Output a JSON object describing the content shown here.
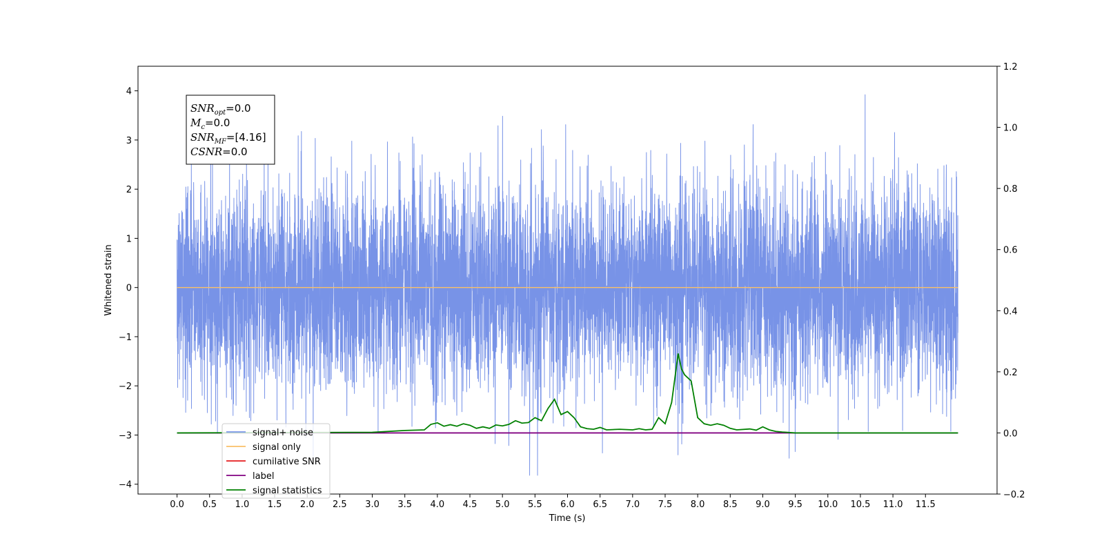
{
  "chart_data": {
    "type": "line",
    "title": "",
    "xlabel": "Time (s)",
    "ylabel": "Whitened strain",
    "xlim": [
      -0.6,
      12.6
    ],
    "ylim": [
      -4.2,
      4.5
    ],
    "y2lim": [
      -0.2,
      1.2
    ],
    "x_ticks": [
      "0.0",
      "0.5",
      "1.0",
      "1.5",
      "2.0",
      "2.5",
      "3.0",
      "3.5",
      "4.0",
      "4.5",
      "5.0",
      "5.5",
      "6.0",
      "6.5",
      "7.0",
      "7.5",
      "8.0",
      "8.5",
      "9.0",
      "9.5",
      "10.0",
      "10.5",
      "11.0",
      "11.5"
    ],
    "y_ticks": [
      "4",
      "3",
      "2",
      "1",
      "0",
      "−1",
      "−2",
      "−3",
      "−4"
    ],
    "y2_ticks": [
      "1.2",
      "1.0",
      "0.8",
      "0.6",
      "0.4",
      "0.2",
      "0.0",
      "−0.2"
    ],
    "legend_position": "lower-left",
    "grid": false,
    "stats": [
      {
        "sym": "SNR",
        "sub": "opt",
        "val": "=0.0"
      },
      {
        "sym": "M",
        "sub": "c",
        "val": "=0.0"
      },
      {
        "sym": "SNR",
        "sub": "MF",
        "val": "=[4.16]"
      },
      {
        "sym": "CSNR",
        "sub": "",
        "val": "=0.0"
      }
    ],
    "series": [
      {
        "name": "signal+ noise",
        "color": "#7893e7",
        "axis": "left",
        "kind": "noise",
        "x_range": [
          0.0,
          12.0
        ],
        "std": 1.05,
        "peak_max": 4.12,
        "peak_min": -3.82
      },
      {
        "name": "signal only",
        "color": "#f9bf67",
        "axis": "left",
        "x": [
          0.0,
          12.0
        ],
        "y": [
          0.0,
          0.0
        ]
      },
      {
        "name": "cumilative SNR",
        "color": "#e41a1c",
        "axis": "right",
        "x": [],
        "y": []
      },
      {
        "name": "label",
        "color": "#800080",
        "axis": "right",
        "x": [
          0.0,
          12.0
        ],
        "y": [
          0.0,
          0.0
        ]
      },
      {
        "name": "signal statistics",
        "color": "#008000",
        "axis": "right",
        "x": [
          0.0,
          3.0,
          3.5,
          3.8,
          3.9,
          4.0,
          4.1,
          4.2,
          4.3,
          4.4,
          4.5,
          4.6,
          4.7,
          4.8,
          4.9,
          5.0,
          5.1,
          5.2,
          5.3,
          5.4,
          5.5,
          5.6,
          5.7,
          5.8,
          5.9,
          6.0,
          6.1,
          6.2,
          6.3,
          6.4,
          6.5,
          6.6,
          6.8,
          7.0,
          7.1,
          7.2,
          7.3,
          7.4,
          7.5,
          7.6,
          7.7,
          7.75,
          7.8,
          7.9,
          8.0,
          8.1,
          8.2,
          8.3,
          8.4,
          8.5,
          8.6,
          8.8,
          8.9,
          9.0,
          9.1,
          9.2,
          9.3,
          9.5,
          12.0
        ],
        "y": [
          0.0,
          0.002,
          0.008,
          0.01,
          0.028,
          0.033,
          0.022,
          0.027,
          0.022,
          0.03,
          0.025,
          0.015,
          0.02,
          0.015,
          0.026,
          0.023,
          0.028,
          0.04,
          0.032,
          0.034,
          0.05,
          0.04,
          0.08,
          0.11,
          0.06,
          0.07,
          0.05,
          0.02,
          0.014,
          0.012,
          0.018,
          0.01,
          0.012,
          0.01,
          0.014,
          0.01,
          0.012,
          0.05,
          0.03,
          0.1,
          0.26,
          0.21,
          0.19,
          0.17,
          0.05,
          0.03,
          0.025,
          0.03,
          0.025,
          0.015,
          0.01,
          0.013,
          0.009,
          0.02,
          0.01,
          0.005,
          0.003,
          0.0,
          0.0
        ]
      }
    ]
  }
}
